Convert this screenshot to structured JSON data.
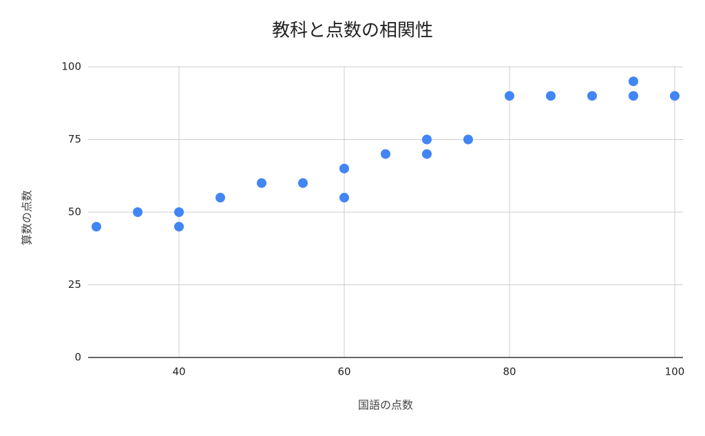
{
  "chart_data": {
    "type": "scatter",
    "title": "教科と点数の相関性",
    "x_label": "国語の点数",
    "y_label": "算数の点数",
    "x": [
      30,
      35,
      40,
      40,
      45,
      50,
      55,
      60,
      60,
      65,
      70,
      70,
      75,
      80,
      85,
      90,
      95,
      95,
      100
    ],
    "values": [
      45,
      50,
      50,
      45,
      55,
      60,
      60,
      65,
      55,
      70,
      75,
      70,
      75,
      90,
      90,
      90,
      95,
      90,
      90
    ],
    "color": "#4285f4",
    "xlim": [
      29,
      101
    ],
    "xticks": [
      40,
      60,
      80,
      100
    ],
    "ylim": [
      0,
      100
    ],
    "yticks": [
      0,
      25,
      50,
      75,
      100
    ],
    "grid": true
  }
}
